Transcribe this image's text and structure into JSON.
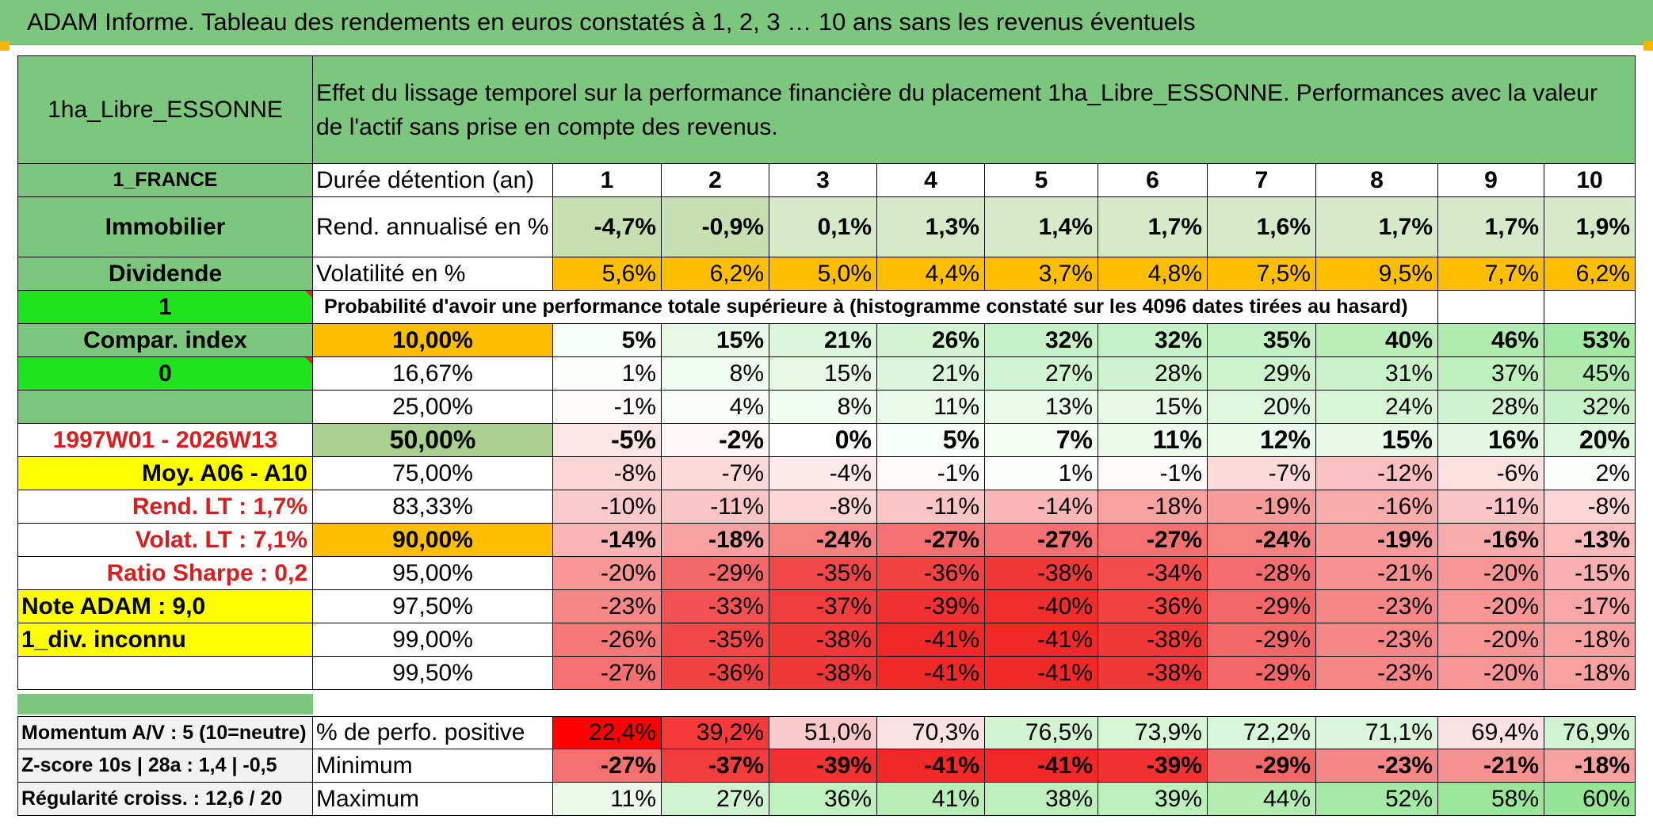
{
  "title": "ADAM Informe. Tableau des rendements en euros constatés à 1, 2, 3 … 10 ans sans les revenus éventuels",
  "left": {
    "asset_name": "1ha_Libre_ESSONNE",
    "country": "1_FRANCE",
    "category": "Immobilier",
    "income_type": "Dividende",
    "flag_one": "1",
    "compar_index": "Compar. index",
    "flag_zero": "0",
    "period": "1997W01 - 2026W13",
    "moy": "Moy. A06 - A10",
    "rend_lt": "Rend. LT :   1,7%",
    "volat_lt": "Volat. LT :   7,1%",
    "sharpe": "Ratio Sharpe :    0,2",
    "note": "Note ADAM : 9,0",
    "div": "1_div. inconnu",
    "momentum": "Momentum A/V : 5 (10=neutre)",
    "zscore": "Z-score 10s | 28a : 1,4 | -0,5",
    "regularite": "Régularité croiss. : 12,6 / 20"
  },
  "header_description": "Effet du lissage temporel sur la performance financière du placement 1ha_Libre_ESSONNE. Performances avec la valeur de l'actif sans prise en compte des revenus.",
  "labels": {
    "duree": "Durée détention (an)",
    "rend": "Rend. annualisé en %",
    "vol": "Volatilité en %",
    "proba": "Probabilité d'avoir une performance totale supérieure à (histogramme constaté sur les 4096 dates tirées au hasard)",
    "pos": "% de perfo. positive",
    "min": "Minimum",
    "max": "Maximum"
  },
  "years": [
    "1",
    "2",
    "3",
    "4",
    "5",
    "6",
    "7",
    "8",
    "9",
    "10"
  ],
  "rend": [
    "-4,7%",
    "-0,9%",
    "0,1%",
    "1,3%",
    "1,4%",
    "1,7%",
    "1,6%",
    "1,7%",
    "1,7%",
    "1,9%"
  ],
  "vol": [
    "5,6%",
    "6,2%",
    "5,0%",
    "4,4%",
    "3,7%",
    "4,8%",
    "7,5%",
    "9,5%",
    "7,7%",
    "6,2%"
  ],
  "percentile_rows": [
    {
      "label": "10,00%",
      "values": [
        "5%",
        "15%",
        "21%",
        "26%",
        "32%",
        "32%",
        "35%",
        "40%",
        "46%",
        "53%"
      ]
    },
    {
      "label": "16,67%",
      "values": [
        "1%",
        "8%",
        "15%",
        "21%",
        "27%",
        "28%",
        "29%",
        "31%",
        "37%",
        "45%"
      ]
    },
    {
      "label": "25,00%",
      "values": [
        "-1%",
        "4%",
        "8%",
        "11%",
        "13%",
        "15%",
        "20%",
        "24%",
        "28%",
        "32%"
      ]
    },
    {
      "label": "50,00%",
      "values": [
        "-5%",
        "-2%",
        "0%",
        "5%",
        "7%",
        "11%",
        "12%",
        "15%",
        "16%",
        "20%"
      ]
    },
    {
      "label": "75,00%",
      "values": [
        "-8%",
        "-7%",
        "-4%",
        "-1%",
        "1%",
        "-1%",
        "-7%",
        "-12%",
        "-6%",
        "2%"
      ]
    },
    {
      "label": "83,33%",
      "values": [
        "-10%",
        "-11%",
        "-8%",
        "-11%",
        "-14%",
        "-18%",
        "-19%",
        "-16%",
        "-11%",
        "-8%"
      ]
    },
    {
      "label": "90,00%",
      "values": [
        "-14%",
        "-18%",
        "-24%",
        "-27%",
        "-27%",
        "-27%",
        "-24%",
        "-19%",
        "-16%",
        "-13%"
      ]
    },
    {
      "label": "95,00%",
      "values": [
        "-20%",
        "-29%",
        "-35%",
        "-36%",
        "-38%",
        "-34%",
        "-28%",
        "-21%",
        "-20%",
        "-15%"
      ]
    },
    {
      "label": "97,50%",
      "values": [
        "-23%",
        "-33%",
        "-37%",
        "-39%",
        "-40%",
        "-36%",
        "-29%",
        "-23%",
        "-20%",
        "-17%"
      ]
    },
    {
      "label": "99,00%",
      "values": [
        "-26%",
        "-35%",
        "-38%",
        "-41%",
        "-41%",
        "-38%",
        "-29%",
        "-23%",
        "-20%",
        "-18%"
      ]
    },
    {
      "label": "99,50%",
      "values": [
        "-27%",
        "-36%",
        "-38%",
        "-41%",
        "-41%",
        "-38%",
        "-29%",
        "-23%",
        "-20%",
        "-18%"
      ]
    }
  ],
  "pos": [
    "22,4%",
    "39,2%",
    "51,0%",
    "70,3%",
    "76,5%",
    "73,9%",
    "72,2%",
    "71,1%",
    "69,4%",
    "76,9%"
  ],
  "min": [
    "-27%",
    "-37%",
    "-39%",
    "-41%",
    "-41%",
    "-39%",
    "-29%",
    "-23%",
    "-21%",
    "-18%"
  ],
  "max": [
    "11%",
    "27%",
    "36%",
    "41%",
    "38%",
    "39%",
    "44%",
    "52%",
    "58%",
    "60%"
  ],
  "colors": {
    "header_green": "#7dc67e",
    "lime": "#1fe31f",
    "yellow": "#ffff00",
    "orange": "#ffbf00",
    "label_red": "#d81e1e"
  }
}
